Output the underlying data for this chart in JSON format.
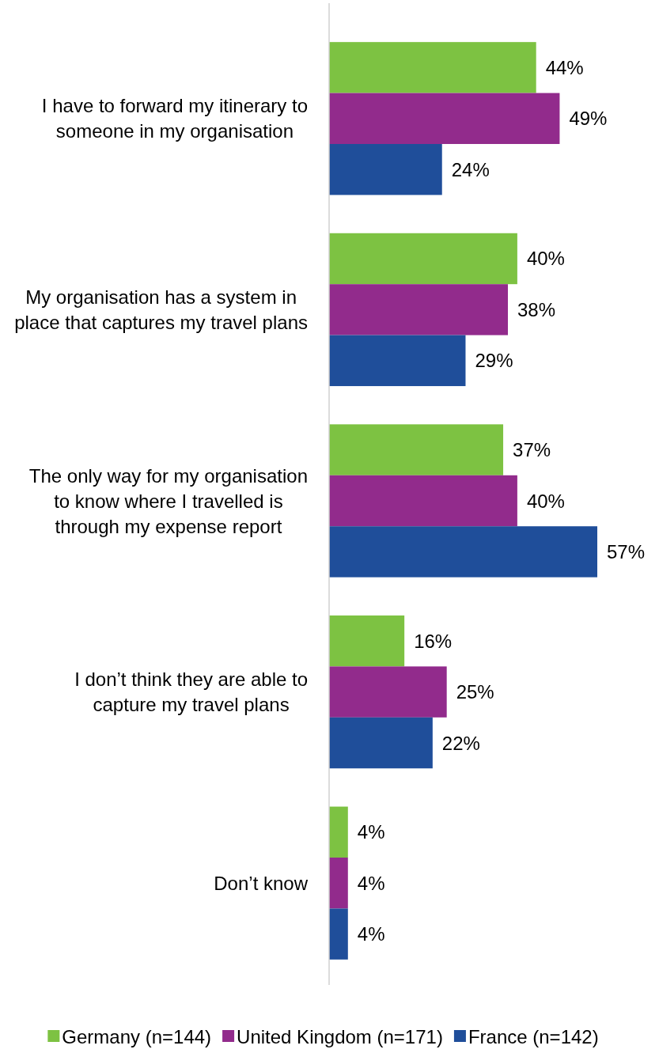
{
  "chart_data": {
    "type": "bar",
    "orientation": "horizontal",
    "legend": "bottom",
    "categories": [
      "I have to forward my itinerary to someone in my organisation",
      "My organisation has a system in place that captures my travel plans",
      "The only way for my organisation to know where I travelled is through my expense report",
      "I don’t think they are able to capture my travel plans",
      "Don’t know"
    ],
    "series": [
      {
        "name": "Germany (n=144)",
        "color": "#7dc242",
        "values": [
          44,
          40,
          37,
          16,
          4
        ],
        "value_labels": [
          "44%",
          "40%",
          "37%",
          "16%",
          "4%"
        ]
      },
      {
        "name": "United Kingdom (n=171)",
        "color": "#922b8c",
        "values": [
          49,
          38,
          40,
          25,
          4
        ],
        "value_labels": [
          "49%",
          "38%",
          "40%",
          "25%",
          "4%"
        ]
      },
      {
        "name": "France (n=142)",
        "color": "#1f4e9a",
        "values": [
          24,
          29,
          57,
          22,
          4
        ],
        "value_labels": [
          "24%",
          "29%",
          "57%",
          "22%",
          "4%"
        ]
      }
    ]
  }
}
